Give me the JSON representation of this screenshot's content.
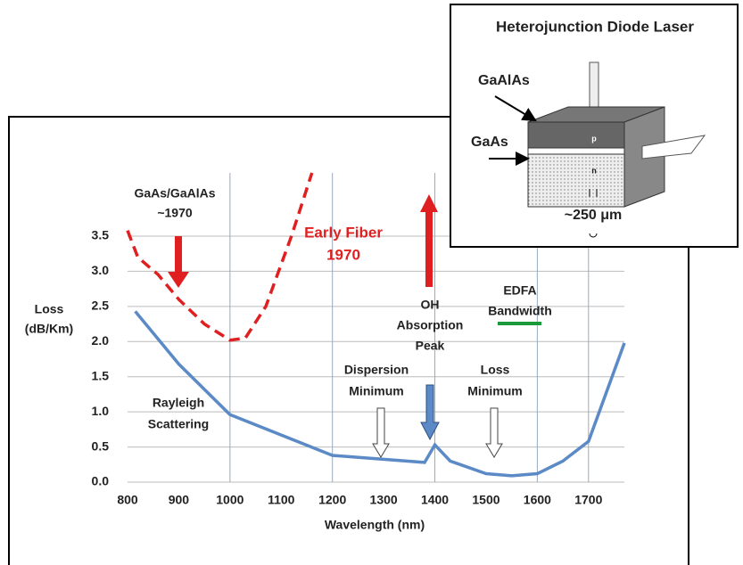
{
  "chart_data": {
    "type": "line",
    "ylabel": [
      "Loss",
      "(dB/Km)"
    ],
    "xlabel": "Wavelength (nm)",
    "xlim": [
      800,
      1770
    ],
    "ylim": [
      0,
      4.4
    ],
    "xticks": [
      800,
      900,
      1000,
      1100,
      1200,
      1300,
      1400,
      1500,
      1600,
      1700
    ],
    "yticks": [
      {
        "value": 0,
        "label": "0.0"
      },
      0.5,
      {
        "value": 1,
        "label": "1.0"
      },
      1.5,
      {
        "value": 2,
        "label": "2.0"
      },
      2.5,
      {
        "value": 3,
        "label": "3.0"
      },
      3.5
    ],
    "xgrid": [
      1000,
      1200,
      1400,
      1600,
      1700
    ],
    "grid": true,
    "series": [
      {
        "color": "#5b8ac6",
        "dashed": false,
        "x": [
          815,
          900,
          1000,
          1200,
          1380,
          1400,
          1430,
          1500,
          1550,
          1600,
          1650,
          1700,
          1770
        ],
        "values": [
          2.43,
          1.68,
          0.96,
          0.38,
          0.28,
          0.53,
          0.3,
          0.12,
          0.09,
          0.12,
          0.3,
          0.58,
          1.98
        ]
      },
      {
        "color": "#e02020",
        "dashed": true,
        "x": [
          800,
          820,
          860,
          900,
          950,
          1000,
          1030,
          1070,
          1120,
          1160
        ],
        "values": [
          3.58,
          3.2,
          2.95,
          2.6,
          2.25,
          2.02,
          2.05,
          2.5,
          3.5,
          4.4
        ]
      }
    ],
    "annotations": {
      "gaas": [
        "GaAs/GaAlAs",
        "~1970"
      ],
      "early": [
        "Early Fiber",
        "1970"
      ],
      "oh": [
        "OH",
        "Absorption",
        "Peak"
      ],
      "edfa": [
        "EDFA",
        "Bandwidth"
      ],
      "dispersion": [
        "Dispersion",
        "Minimum"
      ],
      "loss": [
        "Loss",
        "Minimum"
      ],
      "rayleigh": [
        "Rayleigh",
        "Scattering"
      ]
    }
  },
  "inset": {
    "title": "Heterojunction Diode Laser",
    "labels": [
      "GaAlAs",
      "GaAs",
      "p",
      "n",
      "~250 μm"
    ]
  }
}
